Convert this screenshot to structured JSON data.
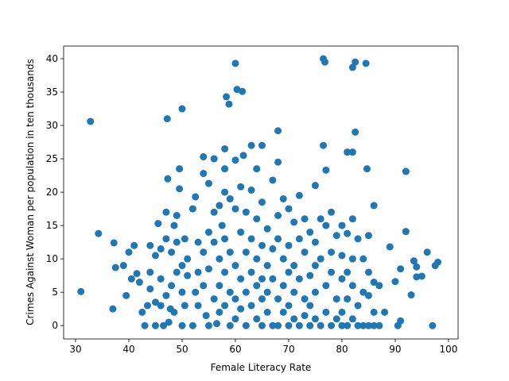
{
  "chart_data": {
    "type": "scatter",
    "xlabel": "Female Literacy Rate",
    "ylabel": "Crimes Against Woman per population in ten thousands",
    "color": "#1f77b4",
    "grid": false,
    "xlim": [
      27.76,
      101.8
    ],
    "ylim": [
      -2.0,
      41.9
    ],
    "xticks": [
      30,
      40,
      50,
      60,
      70,
      80,
      90,
      100
    ],
    "yticks": [
      0,
      5,
      10,
      15,
      20,
      25,
      30,
      35,
      40
    ],
    "x": [
      31,
      32.8,
      34.3,
      37,
      37.5,
      37.2,
      39,
      39.5,
      40,
      40.5,
      41,
      41.5,
      42,
      42.5,
      43,
      43.5,
      44,
      44,
      44,
      45,
      45,
      45,
      45.5,
      46,
      46,
      46,
      46.5,
      47,
      47,
      47,
      47.2,
      47.3,
      47.5,
      47.8,
      48,
      48,
      48.5,
      48.5,
      49,
      49,
      49,
      49.5,
      49.5,
      50,
      50,
      50,
      50,
      50.5,
      50.5,
      51,
      51,
      52,
      52.5,
      52,
      52.5,
      53,
      53,
      53,
      54,
      54,
      54,
      54,
      54.5,
      55,
      55,
      55,
      55,
      56,
      56,
      56,
      56,
      56.5,
      57,
      57,
      57,
      57,
      57.5,
      58,
      58,
      58,
      58,
      58,
      58,
      58.3,
      58.8,
      59,
      59,
      59,
      59,
      60,
      60,
      60,
      60,
      60,
      60,
      60.3,
      61,
      61,
      61,
      61,
      61.3,
      61.5,
      62,
      62,
      62,
      62,
      63,
      63,
      63,
      63,
      63,
      64,
      64,
      64,
      64,
      64,
      65,
      65,
      65,
      65,
      65,
      65,
      66,
      66,
      66,
      66,
      67,
      67,
      67,
      67,
      68,
      68,
      68,
      68,
      68,
      68,
      69,
      69,
      69,
      69,
      70,
      70,
      70,
      70,
      70,
      71,
      71,
      71,
      71,
      72,
      72,
      72,
      72,
      73,
      73,
      73,
      73,
      74,
      74,
      74,
      74,
      75,
      75,
      75,
      75,
      75,
      76,
      76,
      76,
      76.5,
      76.5,
      76.8,
      77,
      77,
      77,
      77,
      78,
      78,
      78,
      78,
      79,
      79,
      79,
      80,
      80,
      80,
      80,
      80,
      81,
      81,
      81,
      81,
      81,
      82,
      82,
      82,
      82,
      82,
      82,
      82.5,
      82.5,
      83,
      83,
      83,
      84,
      84,
      84,
      84.5,
      84.7,
      85,
      85,
      85,
      85,
      86,
      86,
      86,
      86,
      87,
      87,
      88,
      89,
      90,
      90.5,
      91,
      91,
      92,
      92,
      93,
      93.5,
      94,
      94,
      95,
      96,
      97,
      97.5,
      98
    ],
    "y": [
      5.1,
      30.6,
      13.8,
      2.5,
      8.7,
      12.4,
      9,
      4.5,
      11,
      7,
      12,
      7.8,
      6.5,
      2,
      0,
      3,
      12,
      8,
      5.5,
      0,
      10.5,
      3.5,
      15.3,
      3,
      7,
      11.5,
      0,
      4.5,
      13,
      17,
      31,
      22,
      0.5,
      2.5,
      11,
      6,
      15,
      2,
      8,
      12.5,
      16.5,
      20.5,
      23.5,
      32.5,
      5,
      9,
      0,
      3,
      13,
      7.5,
      10,
      17.5,
      19.3,
      0,
      5,
      12.5,
      8,
      3,
      22.8,
      25.3,
      11,
      6,
      1.5,
      21.3,
      14,
      8.5,
      0,
      25,
      17,
      12.5,
      4,
      0.3,
      18,
      10,
      6,
      2,
      15,
      26.5,
      23.5,
      20,
      13,
      8,
      3,
      34.3,
      33.2,
      19,
      11,
      5,
      0,
      39.3,
      24.8,
      17.5,
      9,
      4,
      1,
      35.4,
      20.8,
      14,
      7,
      2.5,
      35.1,
      25.5,
      17,
      11,
      5,
      0,
      27,
      20.3,
      13,
      8,
      3,
      23.5,
      16,
      10,
      6,
      1,
      27,
      18.5,
      12,
      7,
      4,
      0,
      14.5,
      9,
      5,
      2,
      21.8,
      11.5,
      7,
      0,
      29.2,
      24.5,
      16.5,
      13,
      4,
      0,
      19,
      10,
      6,
      2,
      17.5,
      12,
      8,
      3,
      0,
      15.5,
      9,
      5,
      1,
      19.5,
      13,
      7,
      0,
      16,
      11,
      4,
      1.5,
      14,
      7.5,
      3,
      0,
      21,
      12.5,
      9,
      5,
      1,
      16,
      10,
      0,
      40,
      27,
      39.5,
      23.3,
      15,
      6,
      2,
      17,
      11,
      8,
      0,
      13.5,
      4,
      1,
      15,
      10.5,
      7,
      2,
      0,
      26,
      13.8,
      8,
      4,
      0,
      38.7,
      26,
      16,
      10,
      6,
      1,
      39.5,
      29,
      13,
      3,
      0,
      10,
      5,
      0,
      39.3,
      23.5,
      13.5,
      8,
      4.5,
      0,
      18,
      6.5,
      2,
      0,
      6,
      0,
      2,
      11.8,
      6.6,
      0,
      8.5,
      0.7,
      23.1,
      14.1,
      4.6,
      9.7,
      7.3,
      8.8,
      7.4,
      11,
      0,
      9,
      9.5
    ]
  }
}
